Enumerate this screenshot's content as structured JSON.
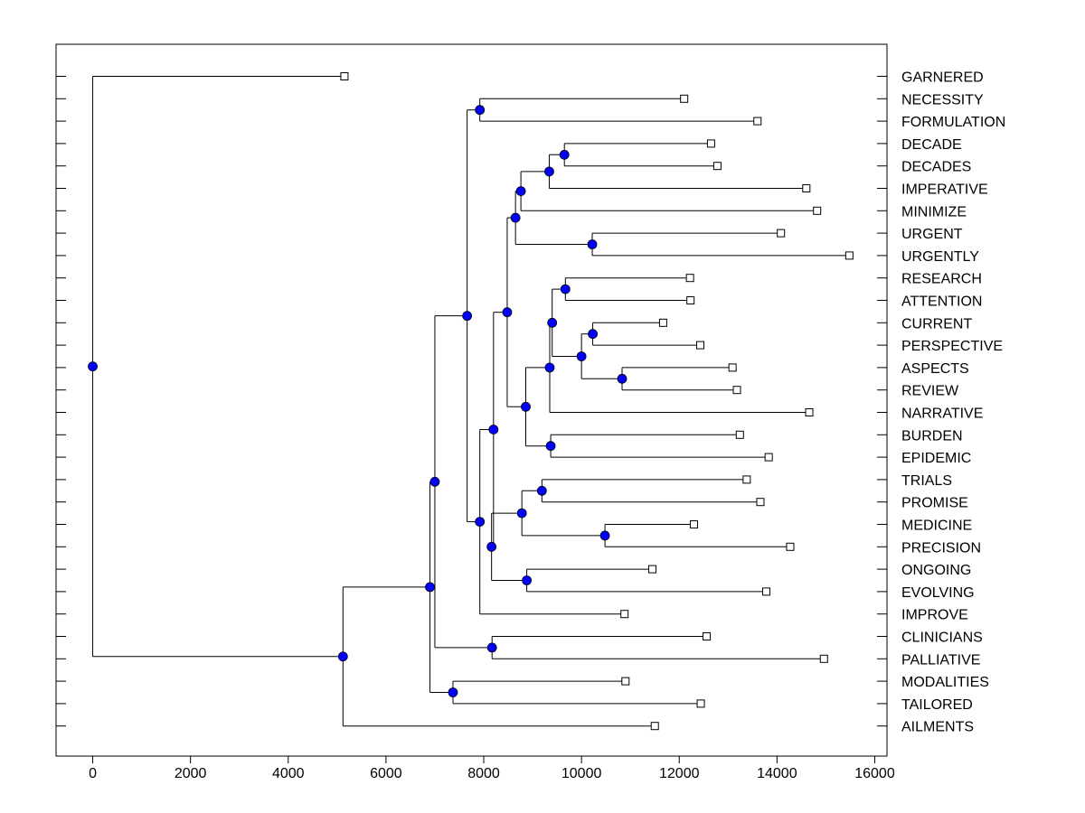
{
  "chart_data": {
    "type": "dendrogram",
    "title": "",
    "xlabel": "",
    "ylabel": "",
    "xlim": [
      -750,
      16250
    ],
    "x_ticks": [
      0,
      2000,
      4000,
      6000,
      8000,
      10000,
      12000,
      14000,
      16000
    ],
    "colors": {
      "node": "#0000ff",
      "line": "#000000",
      "leaf": "#ffffff"
    },
    "leaves": [
      {
        "label": "GARNERED",
        "x": 5150
      },
      {
        "label": "NECESSITY",
        "x": 12100
      },
      {
        "label": "FORMULATION",
        "x": 13600
      },
      {
        "label": "DECADE",
        "x": 12650
      },
      {
        "label": "DECADES",
        "x": 12780
      },
      {
        "label": "IMPERATIVE",
        "x": 14600
      },
      {
        "label": "MINIMIZE",
        "x": 14820
      },
      {
        "label": "URGENT",
        "x": 14080
      },
      {
        "label": "URGENTLY",
        "x": 15480
      },
      {
        "label": "RESEARCH",
        "x": 12220
      },
      {
        "label": "ATTENTION",
        "x": 12230
      },
      {
        "label": "CURRENT",
        "x": 11670
      },
      {
        "label": "PERSPECTIVE",
        "x": 12430
      },
      {
        "label": "ASPECTS",
        "x": 13090
      },
      {
        "label": "REVIEW",
        "x": 13180
      },
      {
        "label": "NARRATIVE",
        "x": 14660
      },
      {
        "label": "BURDEN",
        "x": 13240
      },
      {
        "label": "EPIDEMIC",
        "x": 13830
      },
      {
        "label": "TRIALS",
        "x": 13380
      },
      {
        "label": "PROMISE",
        "x": 13660
      },
      {
        "label": "MEDICINE",
        "x": 12300
      },
      {
        "label": "PRECISION",
        "x": 14270
      },
      {
        "label": "ONGOING",
        "x": 11450
      },
      {
        "label": "EVOLVING",
        "x": 13780
      },
      {
        "label": "IMPROVE",
        "x": 10880
      },
      {
        "label": "CLINICIANS",
        "x": 12560
      },
      {
        "label": "PALLIATIVE",
        "x": 14960
      },
      {
        "label": "MODALITIES",
        "x": 10900
      },
      {
        "label": "TAILORED",
        "x": 12440
      },
      {
        "label": "AILMENTS",
        "x": 11500
      }
    ],
    "merges": [
      {
        "id": "n1",
        "x": 7920,
        "children": [
          "L1",
          "L2"
        ]
      },
      {
        "id": "n2",
        "x": 9650,
        "children": [
          "L3",
          "L4"
        ]
      },
      {
        "id": "n3",
        "x": 9340,
        "children": [
          "n2",
          "L5"
        ]
      },
      {
        "id": "n4",
        "x": 8760,
        "children": [
          "n3",
          "L6"
        ]
      },
      {
        "id": "n5",
        "x": 10220,
        "children": [
          "L7",
          "L8"
        ]
      },
      {
        "id": "n6",
        "x": 8650,
        "children": [
          "n4",
          "n5"
        ]
      },
      {
        "id": "n7",
        "x": 9670,
        "children": [
          "L9",
          "L10"
        ]
      },
      {
        "id": "n8",
        "x": 10230,
        "children": [
          "L11",
          "L12"
        ]
      },
      {
        "id": "n9",
        "x": 10830,
        "children": [
          "L13",
          "L14"
        ]
      },
      {
        "id": "n10",
        "x": 10000,
        "children": [
          "n8",
          "n9"
        ]
      },
      {
        "id": "n11",
        "x": 9400,
        "children": [
          "n7",
          "n10"
        ]
      },
      {
        "id": "n12",
        "x": 9350,
        "children": [
          "n11",
          "L15"
        ]
      },
      {
        "id": "n13",
        "x": 9370,
        "children": [
          "L16",
          "L17"
        ]
      },
      {
        "id": "n14",
        "x": 8860,
        "children": [
          "n12",
          "n13"
        ]
      },
      {
        "id": "n15",
        "x": 8480,
        "children": [
          "n6",
          "n14"
        ]
      },
      {
        "id": "n16",
        "x": 9190,
        "children": [
          "L18",
          "L19"
        ]
      },
      {
        "id": "n17",
        "x": 10480,
        "children": [
          "L20",
          "L21"
        ]
      },
      {
        "id": "n18",
        "x": 8780,
        "children": [
          "n16",
          "n17"
        ]
      },
      {
        "id": "n19",
        "x": 8880,
        "children": [
          "L22",
          "L23"
        ]
      },
      {
        "id": "n20",
        "x": 8160,
        "children": [
          "n18",
          "n19"
        ]
      },
      {
        "id": "n21",
        "x": 8200,
        "children": [
          "n15",
          "n20"
        ]
      },
      {
        "id": "n22",
        "x": 7920,
        "children": [
          "n21",
          "L24"
        ]
      },
      {
        "id": "n23",
        "x": 7660,
        "children": [
          "n1",
          "n22"
        ]
      },
      {
        "id": "n24",
        "x": 8170,
        "children": [
          "L25",
          "L26"
        ]
      },
      {
        "id": "n25",
        "x": 7000,
        "children": [
          "n23",
          "n24"
        ]
      },
      {
        "id": "n26",
        "x": 7370,
        "children": [
          "L27",
          "L28"
        ]
      },
      {
        "id": "n27",
        "x": 6900,
        "children": [
          "n25",
          "n26"
        ]
      },
      {
        "id": "n28",
        "x": 5120,
        "children": [
          "n27",
          "L29"
        ]
      },
      {
        "id": "n29",
        "x": 0,
        "children": [
          "L0",
          "n28"
        ]
      }
    ]
  }
}
